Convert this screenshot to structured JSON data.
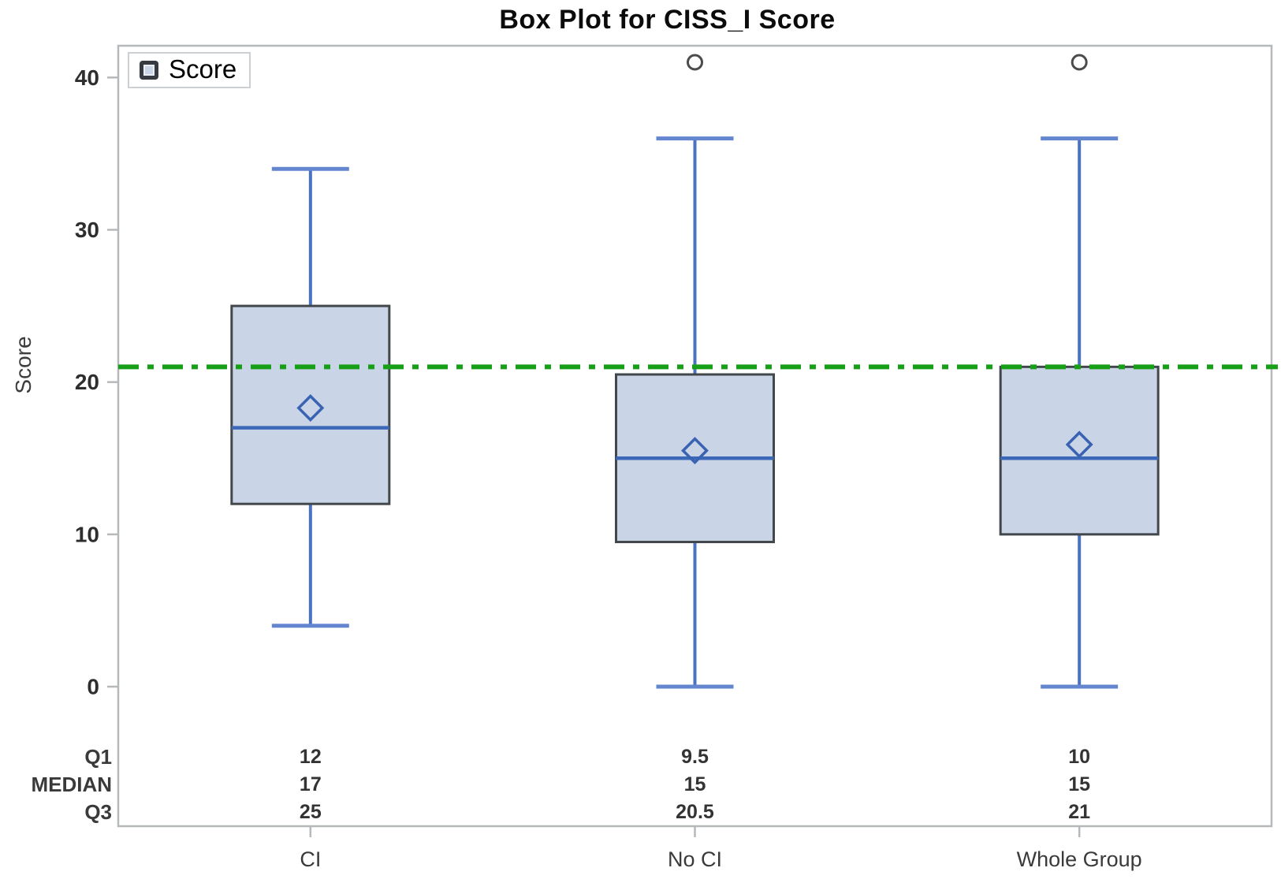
{
  "chart_data": {
    "type": "boxplot",
    "title": "Box Plot for CISS_I Score",
    "xlabel": "",
    "ylabel": "Score",
    "ylim": [
      0,
      42
    ],
    "yticks": [
      0,
      10,
      20,
      30,
      40
    ],
    "grid": false,
    "categories": [
      "CI",
      "No CI",
      "Whole Group"
    ],
    "series": [
      {
        "name": "CI",
        "whisker_low": 4,
        "q1": 12,
        "median": 17,
        "q3": 25,
        "whisker_high": 34,
        "mean": 18.3,
        "outliers": []
      },
      {
        "name": "No CI",
        "whisker_low": 0,
        "q1": 9.5,
        "median": 15,
        "q3": 20.5,
        "whisker_high": 36,
        "mean": 15.5,
        "outliers": [
          41
        ]
      },
      {
        "name": "Whole Group",
        "whisker_low": 0,
        "q1": 10,
        "median": 15,
        "q3": 21,
        "whisker_high": 36,
        "mean": 15.9,
        "outliers": [
          41
        ]
      }
    ],
    "reference_line": {
      "value": 21,
      "style": "dash-dot",
      "color": "#17a017"
    },
    "legend": {
      "entries": [
        "Score"
      ],
      "position": "top-left"
    }
  },
  "stats_table": {
    "row_labels": [
      "Q1",
      "MEDIAN",
      "Q3"
    ],
    "rows": [
      [
        "12",
        "9.5",
        "10"
      ],
      [
        "17",
        "15",
        "15"
      ],
      [
        "25",
        "20.5",
        "21"
      ]
    ]
  },
  "colors": {
    "box_fill": "#c9d5e7",
    "box_border": "#42474c",
    "whisker_blue": "#4a72c2",
    "cap_blue": "#6386cf",
    "median_blue": "#3c68b8",
    "mean_marker_blue": "#3a62b2",
    "reference_green": "#17a017",
    "legend_green": "#3fa347",
    "outlier_gray": "#4b4b4b",
    "frame_gray": "#b5b9bb",
    "tick_text": "#2e2e2e"
  }
}
